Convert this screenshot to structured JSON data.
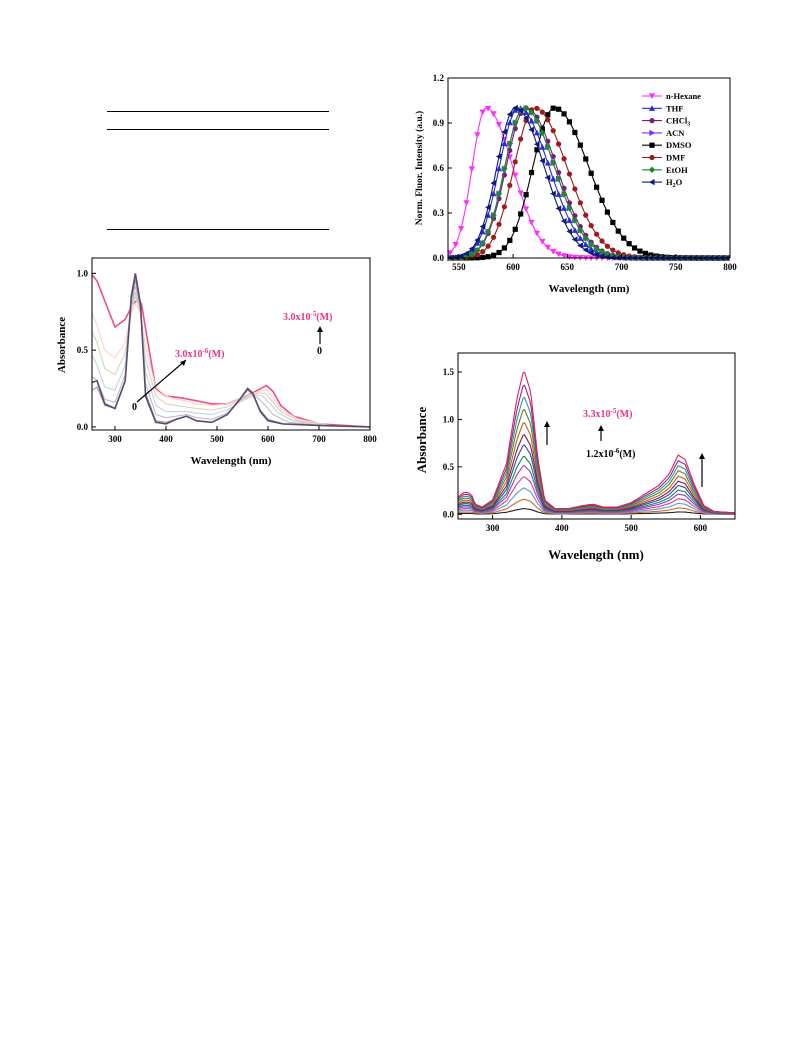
{
  "chart_data": [
    {
      "type": "line",
      "xlabel": "Wavelength (nm)",
      "ylabel": "Absorbance",
      "xlim": [
        255,
        800
      ],
      "ylim": [
        -0.02,
        1.1
      ],
      "xticks": [
        "300",
        "400",
        "500",
        "600",
        "700",
        "800"
      ],
      "yticks": [
        "0.0",
        "0.5",
        "1.0"
      ],
      "annotations": {
        "low_conc": "3.0x10",
        "low_exp": "-6",
        "low_unit": "(M)",
        "low_zero": "0",
        "high_conc": "3.0x10",
        "high_exp": "-5",
        "high_unit": "(M)",
        "high_zero": "0"
      },
      "series": [
        {
          "color": "#5a4a6e",
          "points": [
            [
              255,
              0.29
            ],
            [
              265,
              0.3
            ],
            [
              280,
              0.15
            ],
            [
              300,
              0.12
            ],
            [
              320,
              0.3
            ],
            [
              332,
              0.85
            ],
            [
              340,
              1.0
            ],
            [
              350,
              0.8
            ],
            [
              360,
              0.2
            ],
            [
              380,
              0.03
            ],
            [
              400,
              0.02
            ],
            [
              420,
              0.05
            ],
            [
              440,
              0.07
            ],
            [
              460,
              0.04
            ],
            [
              490,
              0.03
            ],
            [
              520,
              0.08
            ],
            [
              545,
              0.18
            ],
            [
              560,
              0.25
            ],
            [
              570,
              0.22
            ],
            [
              585,
              0.1
            ],
            [
              600,
              0.04
            ],
            [
              630,
              0.02
            ],
            [
              700,
              0.01
            ],
            [
              800,
              0.0
            ]
          ]
        },
        {
          "color": "#9a94a6",
          "points": [
            [
              255,
              0.24
            ],
            [
              265,
              0.26
            ],
            [
              280,
              0.14
            ],
            [
              300,
              0.12
            ],
            [
              320,
              0.3
            ],
            [
              332,
              0.82
            ],
            [
              340,
              0.96
            ],
            [
              350,
              0.78
            ],
            [
              360,
              0.22
            ],
            [
              380,
              0.04
            ],
            [
              400,
              0.03
            ],
            [
              420,
              0.05
            ],
            [
              440,
              0.07
            ],
            [
              460,
              0.04
            ],
            [
              490,
              0.03
            ],
            [
              520,
              0.08
            ],
            [
              545,
              0.18
            ],
            [
              560,
              0.24
            ],
            [
              570,
              0.21
            ],
            [
              585,
              0.11
            ],
            [
              600,
              0.05
            ],
            [
              630,
              0.02
            ],
            [
              700,
              0.01
            ],
            [
              800,
              0.0
            ]
          ]
        },
        {
          "color": "#c9b8c8",
          "points": [
            [
              255,
              0.33
            ],
            [
              265,
              0.3
            ],
            [
              280,
              0.18
            ],
            [
              300,
              0.16
            ],
            [
              320,
              0.34
            ],
            [
              332,
              0.78
            ],
            [
              340,
              0.92
            ],
            [
              350,
              0.76
            ],
            [
              360,
              0.28
            ],
            [
              380,
              0.08
            ],
            [
              400,
              0.06
            ],
            [
              420,
              0.07
            ],
            [
              440,
              0.08
            ],
            [
              460,
              0.06
            ],
            [
              490,
              0.05
            ],
            [
              520,
              0.09
            ],
            [
              545,
              0.17
            ],
            [
              565,
              0.22
            ],
            [
              580,
              0.19
            ],
            [
              595,
              0.14
            ],
            [
              610,
              0.08
            ],
            [
              640,
              0.03
            ],
            [
              700,
              0.01
            ],
            [
              800,
              0.0
            ]
          ]
        },
        {
          "color": "#b7d7e3",
          "points": [
            [
              255,
              0.47
            ],
            [
              265,
              0.4
            ],
            [
              280,
              0.26
            ],
            [
              300,
              0.24
            ],
            [
              320,
              0.4
            ],
            [
              332,
              0.78
            ],
            [
              340,
              0.88
            ],
            [
              350,
              0.74
            ],
            [
              360,
              0.36
            ],
            [
              380,
              0.14
            ],
            [
              400,
              0.1
            ],
            [
              420,
              0.1
            ],
            [
              440,
              0.1
            ],
            [
              460,
              0.09
            ],
            [
              490,
              0.08
            ],
            [
              520,
              0.11
            ],
            [
              550,
              0.17
            ],
            [
              575,
              0.21
            ],
            [
              590,
              0.2
            ],
            [
              605,
              0.15
            ],
            [
              620,
              0.09
            ],
            [
              650,
              0.04
            ],
            [
              700,
              0.01
            ],
            [
              800,
              0.0
            ]
          ]
        },
        {
          "color": "#d9d3b8",
          "points": [
            [
              255,
              0.62
            ],
            [
              265,
              0.55
            ],
            [
              280,
              0.38
            ],
            [
              300,
              0.34
            ],
            [
              320,
              0.48
            ],
            [
              332,
              0.76
            ],
            [
              340,
              0.85
            ],
            [
              350,
              0.74
            ],
            [
              360,
              0.44
            ],
            [
              380,
              0.2
            ],
            [
              400,
              0.15
            ],
            [
              420,
              0.14
            ],
            [
              440,
              0.13
            ],
            [
              460,
              0.12
            ],
            [
              490,
              0.11
            ],
            [
              520,
              0.13
            ],
            [
              550,
              0.18
            ],
            [
              580,
              0.22
            ],
            [
              595,
              0.22
            ],
            [
              610,
              0.16
            ],
            [
              625,
              0.1
            ],
            [
              660,
              0.04
            ],
            [
              720,
              0.01
            ],
            [
              800,
              0.0
            ]
          ]
        },
        {
          "color": "#ffd0c8",
          "points": [
            [
              255,
              0.75
            ],
            [
              265,
              0.66
            ],
            [
              280,
              0.5
            ],
            [
              300,
              0.45
            ],
            [
              320,
              0.55
            ],
            [
              332,
              0.74
            ],
            [
              340,
              0.8
            ],
            [
              350,
              0.74
            ],
            [
              360,
              0.52
            ],
            [
              380,
              0.26
            ],
            [
              400,
              0.2
            ],
            [
              420,
              0.18
            ],
            [
              440,
              0.17
            ],
            [
              460,
              0.15
            ],
            [
              490,
              0.14
            ],
            [
              520,
              0.15
            ],
            [
              550,
              0.19
            ],
            [
              580,
              0.23
            ],
            [
              597,
              0.24
            ],
            [
              612,
              0.18
            ],
            [
              628,
              0.11
            ],
            [
              660,
              0.05
            ],
            [
              720,
              0.01
            ],
            [
              800,
              0.0
            ]
          ]
        },
        {
          "color": "#ef4f86",
          "points": [
            [
              255,
              0.99
            ],
            [
              265,
              0.95
            ],
            [
              280,
              0.82
            ],
            [
              300,
              0.65
            ],
            [
              320,
              0.7
            ],
            [
              335,
              0.8
            ],
            [
              345,
              0.83
            ],
            [
              352,
              0.8
            ],
            [
              362,
              0.6
            ],
            [
              380,
              0.25
            ],
            [
              400,
              0.2
            ],
            [
              430,
              0.19
            ],
            [
              460,
              0.17
            ],
            [
              490,
              0.15
            ],
            [
              520,
              0.15
            ],
            [
              550,
              0.19
            ],
            [
              575,
              0.23
            ],
            [
              597,
              0.27
            ],
            [
              610,
              0.23
            ],
            [
              625,
              0.14
            ],
            [
              650,
              0.07
            ],
            [
              700,
              0.02
            ],
            [
              800,
              0.0
            ]
          ]
        }
      ]
    },
    {
      "type": "line",
      "xlabel": "Wavelength (nm)",
      "ylabel": "Norm. Fluor. Intensity (a.u.)",
      "xlim": [
        540,
        800
      ],
      "ylim": [
        0.0,
        1.2
      ],
      "xticks": [
        "550",
        "600",
        "650",
        "700",
        "750",
        "800"
      ],
      "yticks": [
        "0.0",
        "0.3",
        "0.6",
        "0.9",
        "1.2"
      ],
      "legend_position": "top-right",
      "series": [
        {
          "name": "n-Hexane",
          "color": "#ff2cff",
          "marker": "triangle-down",
          "peak": 575,
          "sl": 18,
          "sr": 35
        },
        {
          "name": "THF",
          "color": "#2b2bd6",
          "marker": "triangle-up",
          "peak": 605,
          "sl": 25,
          "sr": 40
        },
        {
          "name": "CHCl",
          "sub": "3",
          "color": "#7d1a7d",
          "marker": "circle",
          "peak": 612,
          "sl": 26,
          "sr": 40
        },
        {
          "name": "ACN",
          "color": "#7a2cff",
          "marker": "triangle-right",
          "peak": 610,
          "sl": 25,
          "sr": 40
        },
        {
          "name": "DMSO",
          "color": "#000000",
          "marker": "square",
          "peak": 638,
          "sl": 28,
          "sr": 45
        },
        {
          "name": "DMF",
          "color": "#a01a1a",
          "marker": "circle",
          "peak": 620,
          "sl": 27,
          "sr": 42
        },
        {
          "name": "EtOH",
          "color": "#1a8a2a",
          "marker": "diamond",
          "peak": 610,
          "sl": 25,
          "sr": 40
        },
        {
          "name": "H",
          "sub": "2",
          "suffix": "O",
          "color": "#0b1a7a",
          "marker": "triangle-left",
          "peak": 602,
          "sl": 24,
          "sr": 38
        }
      ]
    },
    {
      "type": "line",
      "xlabel": "Wavelength (nm)",
      "ylabel": "Absorbance",
      "xlim": [
        250,
        650
      ],
      "ylim": [
        -0.05,
        1.7
      ],
      "xticks": [
        "300",
        "400",
        "500",
        "600"
      ],
      "yticks": [
        "0.0",
        "0.5",
        "1.0",
        "1.5"
      ],
      "annotations": {
        "top": "3.3x10",
        "top_exp": "-5",
        "top_unit": "(M)",
        "bottom": "1.2x10",
        "bottom_exp": "-6",
        "bottom_unit": "(M)"
      },
      "scales": [
        1.52,
        1.38,
        1.25,
        1.12,
        0.98,
        0.85,
        0.74,
        0.62,
        0.52,
        0.4,
        0.28,
        0.16,
        0.06
      ],
      "colors": [
        "#e0205a",
        "#8a2a8a",
        "#2a9a9a",
        "#6a7a2a",
        "#c06020",
        "#7a1a5a",
        "#2a4ab0",
        "#1a8a4a",
        "#9a3ad0",
        "#d040a0",
        "#5a9ad0",
        "#d06a2a",
        "#222222"
      ],
      "base_profile": [
        [
          250,
          0.12
        ],
        [
          258,
          0.15
        ],
        [
          265,
          0.15
        ],
        [
          270,
          0.13
        ],
        [
          275,
          0.07
        ],
        [
          285,
          0.05
        ],
        [
          300,
          0.1
        ],
        [
          320,
          0.35
        ],
        [
          335,
          0.8
        ],
        [
          345,
          1.0
        ],
        [
          355,
          0.85
        ],
        [
          365,
          0.4
        ],
        [
          375,
          0.1
        ],
        [
          390,
          0.04
        ],
        [
          410,
          0.04
        ],
        [
          430,
          0.06
        ],
        [
          445,
          0.07
        ],
        [
          460,
          0.05
        ],
        [
          480,
          0.05
        ],
        [
          500,
          0.08
        ],
        [
          520,
          0.14
        ],
        [
          540,
          0.2
        ],
        [
          555,
          0.28
        ],
        [
          568,
          0.41
        ],
        [
          578,
          0.38
        ],
        [
          590,
          0.22
        ],
        [
          605,
          0.06
        ],
        [
          620,
          0.02
        ],
        [
          650,
          0.01
        ]
      ]
    }
  ]
}
